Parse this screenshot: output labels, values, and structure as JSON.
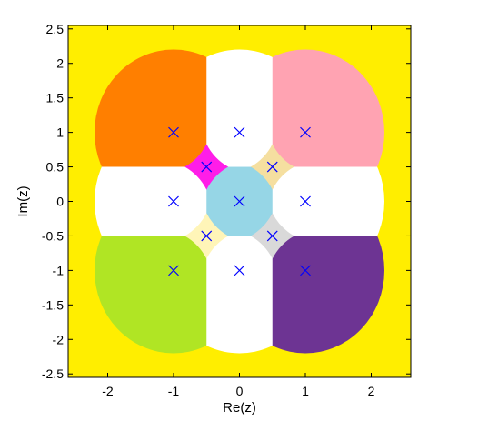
{
  "chart_data": {
    "type": "region-map",
    "xlabel": "Re(z)",
    "ylabel": "Im(z)",
    "xlim": [
      -2.6,
      2.6
    ],
    "ylim": [
      -2.55,
      2.55
    ],
    "xticks": [
      "-2",
      "-1",
      "0",
      "1",
      "2"
    ],
    "xtick_values": [
      -2,
      -1,
      0,
      1,
      2
    ],
    "yticks": [
      "2.5",
      "2",
      "1.5",
      "1",
      "0.5",
      "0",
      "-0.5",
      "-1",
      "-1.5",
      "-2",
      "-2.5"
    ],
    "ytick_values": [
      2.5,
      2,
      1.5,
      1,
      0.5,
      0,
      -0.5,
      -1,
      -1.5,
      -2,
      -2.5
    ],
    "grid": false,
    "background_color": "#ffee00",
    "outer_disk_radius": 1.2,
    "large_regions": [
      {
        "center": [
          -1,
          1
        ],
        "color": "#ff7f00"
      },
      {
        "center": [
          1,
          1
        ],
        "color": "#ffa3b2"
      },
      {
        "center": [
          -1,
          -1
        ],
        "color": "#b0e524"
      },
      {
        "center": [
          1,
          -1
        ],
        "color": "#6d3493"
      }
    ],
    "central_region": {
      "center": [
        0,
        0
      ],
      "color": "#96d6e6"
    },
    "small_regions": [
      {
        "center": [
          -0.5,
          0.5
        ],
        "color": "#ff1de8"
      },
      {
        "center": [
          0.5,
          0.5
        ],
        "color": "#f5dfa0"
      },
      {
        "center": [
          -0.5,
          -0.5
        ],
        "color": "#fff5b8"
      },
      {
        "center": [
          0.5,
          -0.5
        ],
        "color": "#d9d9d9"
      }
    ],
    "markers": {
      "symbol": "x",
      "color": "#0000ff",
      "points": [
        [
          -1,
          1
        ],
        [
          0,
          1
        ],
        [
          1,
          1
        ],
        [
          -0.5,
          0.5
        ],
        [
          0.5,
          0.5
        ],
        [
          -1,
          0
        ],
        [
          0,
          0
        ],
        [
          1,
          0
        ],
        [
          -0.5,
          -0.5
        ],
        [
          0.5,
          -0.5
        ],
        [
          -1,
          -1
        ],
        [
          0,
          -1
        ],
        [
          1,
          -1
        ]
      ]
    }
  }
}
